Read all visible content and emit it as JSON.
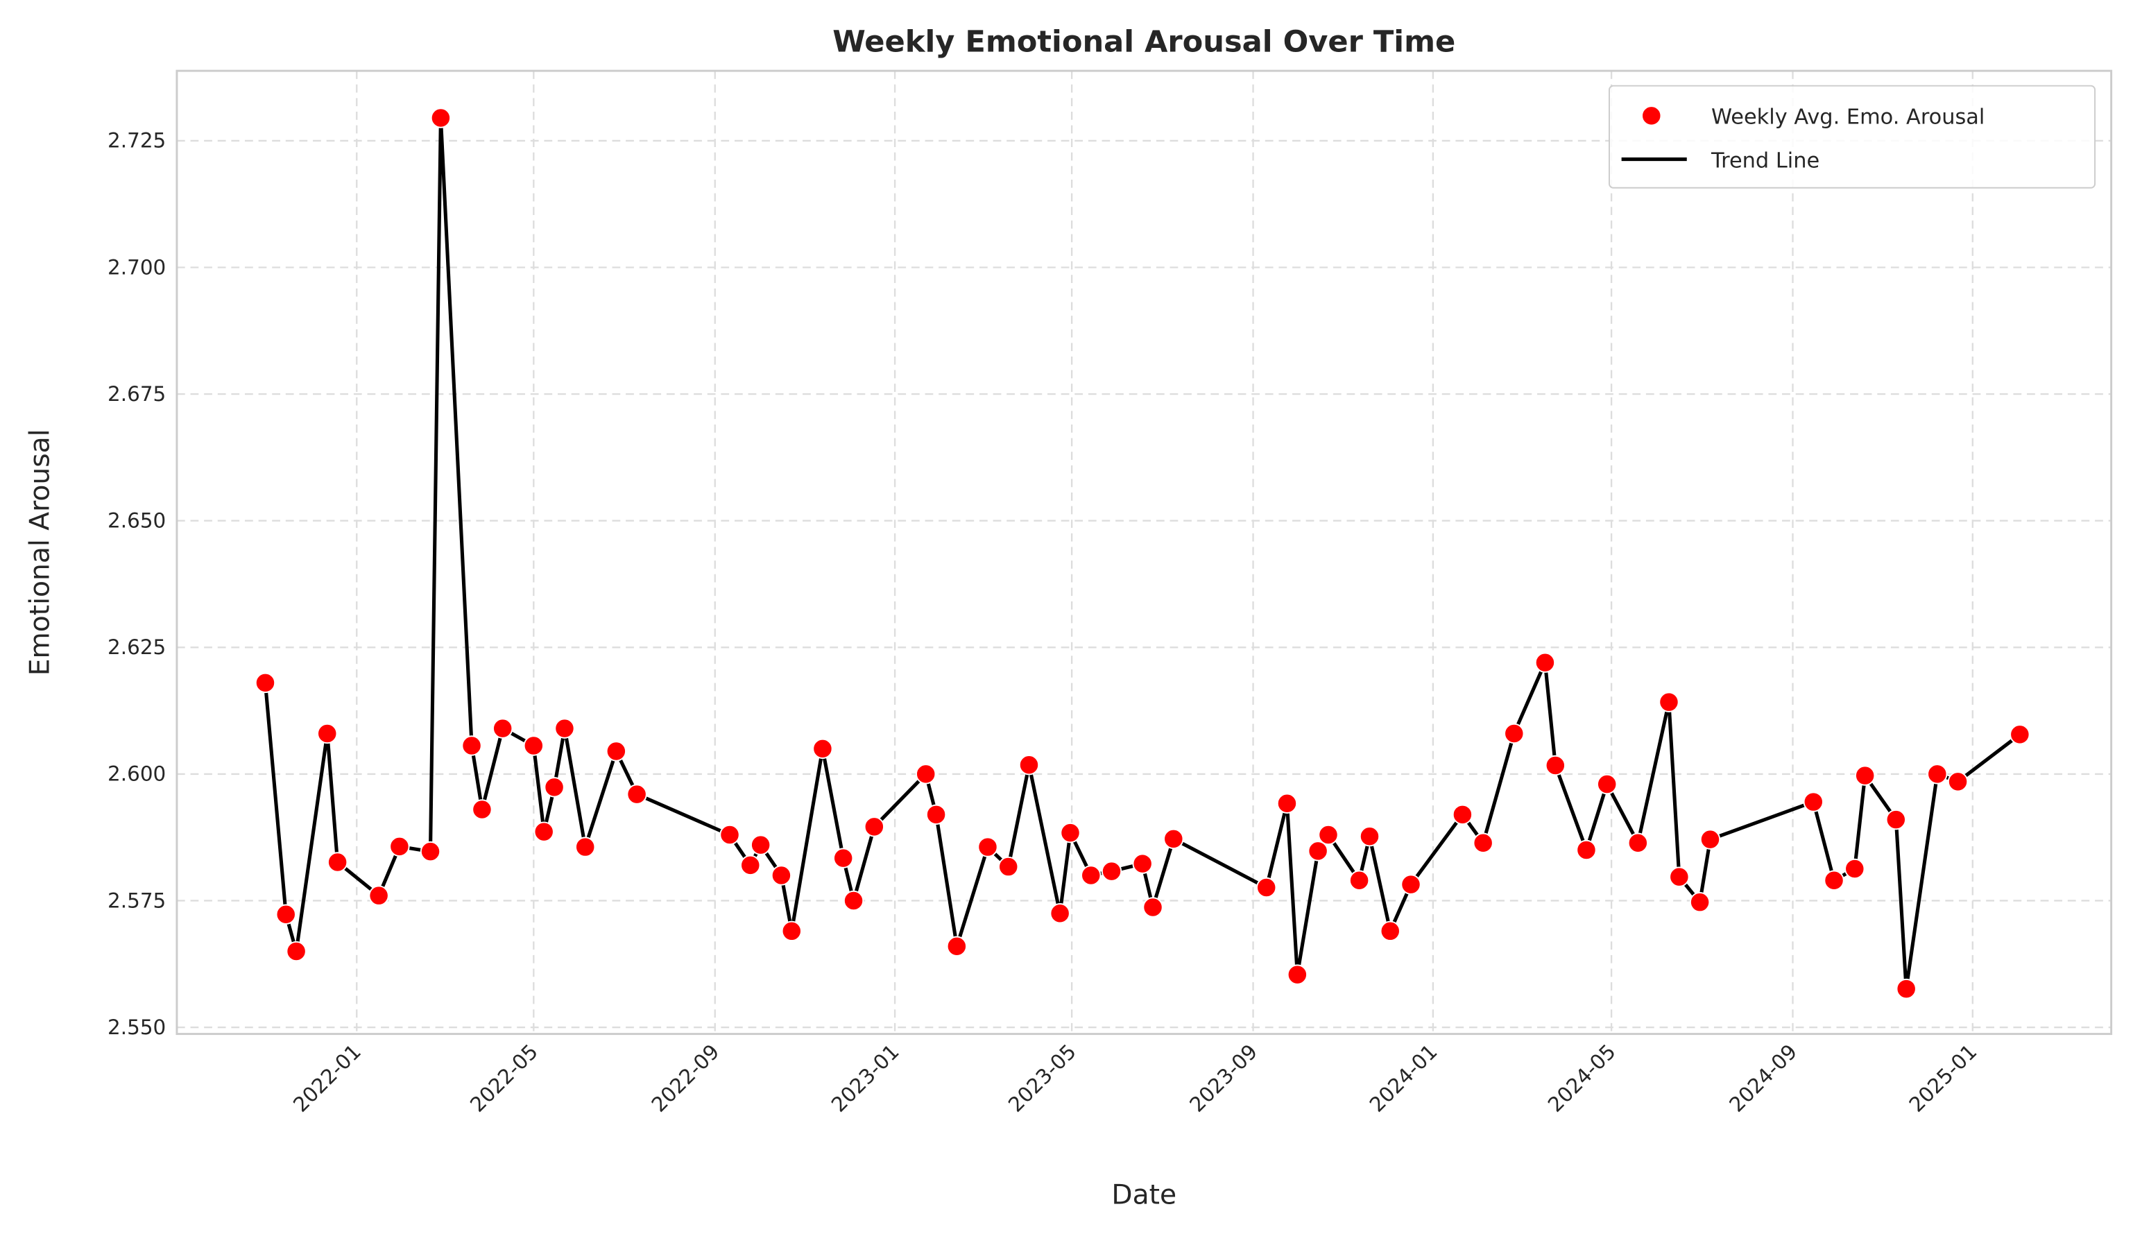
{
  "chart_data": {
    "type": "line",
    "title": "Weekly Emotional Arousal Over Time",
    "xlabel": "Date",
    "ylabel": "Emotional Arousal",
    "xlim": [
      "2021-09-01",
      "2025-04-05"
    ],
    "ylim": [
      2.5487,
      2.7388
    ],
    "grid": true,
    "legend_position": "top-right",
    "x_ticks": [
      "2022-01",
      "2022-05",
      "2022-09",
      "2023-01",
      "2023-05",
      "2023-09",
      "2024-01",
      "2024-05",
      "2024-09",
      "2025-01"
    ],
    "y_ticks": [
      "2.550",
      "2.575",
      "2.600",
      "2.625",
      "2.650",
      "2.675",
      "2.700",
      "2.725"
    ],
    "colors": {
      "points": "#ff0000",
      "line": "#000000",
      "grid": "#dddddd"
    },
    "series": [
      {
        "name": "Weekly Avg. Emo. Arousal",
        "kind": "scatter"
      },
      {
        "name": "Trend Line",
        "kind": "line"
      }
    ],
    "x": [
      "2021-10-31",
      "2021-11-14",
      "2021-11-21",
      "2021-12-12",
      "2021-12-19",
      "2022-01-16",
      "2022-01-30",
      "2022-02-20",
      "2022-02-27",
      "2022-03-20",
      "2022-03-27",
      "2022-04-10",
      "2022-05-01",
      "2022-05-08",
      "2022-05-15",
      "2022-05-22",
      "2022-06-05",
      "2022-06-26",
      "2022-07-10",
      "2022-09-11",
      "2022-09-25",
      "2022-10-02",
      "2022-10-16",
      "2022-10-23",
      "2022-11-13",
      "2022-11-27",
      "2022-12-04",
      "2022-12-18",
      "2023-01-22",
      "2023-01-29",
      "2023-02-12",
      "2023-03-05",
      "2023-03-19",
      "2023-04-02",
      "2023-04-23",
      "2023-04-30",
      "2023-05-14",
      "2023-05-28",
      "2023-06-18",
      "2023-06-25",
      "2023-07-09",
      "2023-09-10",
      "2023-09-24",
      "2023-10-01",
      "2023-10-15",
      "2023-10-22",
      "2023-11-12",
      "2023-11-19",
      "2023-12-03",
      "2023-12-17",
      "2024-01-21",
      "2024-02-04",
      "2024-02-25",
      "2024-03-17",
      "2024-03-24",
      "2024-04-14",
      "2024-04-28",
      "2024-05-19",
      "2024-06-09",
      "2024-06-16",
      "2024-06-30",
      "2024-07-07",
      "2024-09-15",
      "2024-09-29",
      "2024-10-13",
      "2024-10-20",
      "2024-11-10",
      "2024-11-17",
      "2024-12-08",
      "2024-12-22",
      "2025-02-02"
    ],
    "y": [
      2.618,
      2.5723,
      2.565,
      2.608,
      2.5826,
      2.576,
      2.5857,
      2.5847,
      2.7295,
      2.6056,
      2.593,
      2.609,
      2.6056,
      2.5886,
      2.5974,
      2.609,
      2.5856,
      2.6045,
      2.596,
      2.588,
      2.582,
      2.586,
      2.58,
      2.569,
      2.605,
      2.5834,
      2.575,
      2.5896,
      2.6,
      2.592,
      2.566,
      2.5856,
      2.5817,
      2.6018,
      2.5725,
      2.5884,
      2.58,
      2.5808,
      2.5823,
      2.5737,
      2.5872,
      2.5776,
      2.5942,
      2.5604,
      2.5848,
      2.588,
      2.579,
      2.5877,
      2.569,
      2.5782,
      2.592,
      2.5864,
      2.608,
      2.622,
      2.6017,
      2.585,
      2.598,
      2.5864,
      2.6142,
      2.5797,
      2.5747,
      2.5871,
      2.5945,
      2.579,
      2.5813,
      2.5997,
      2.591,
      2.5576,
      2.6,
      2.5985,
      2.6078
    ]
  }
}
